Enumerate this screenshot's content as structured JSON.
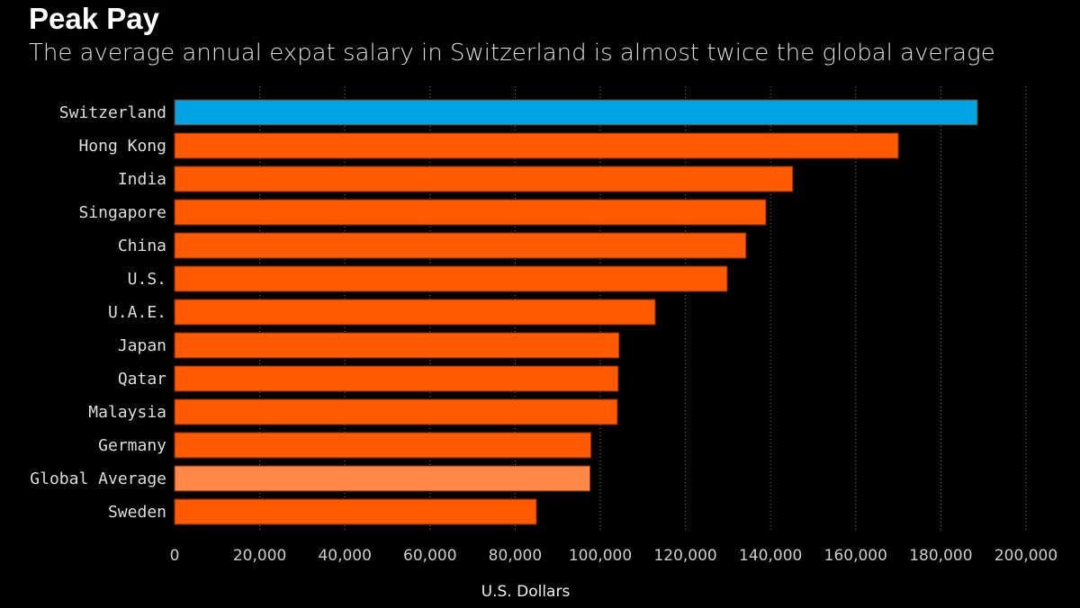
{
  "chart_data": {
    "type": "bar",
    "orientation": "horizontal",
    "title": "Peak Pay",
    "subtitle": "The average annual expat salary in Switzerland is almost twice the global average",
    "xlabel": "U.S. Dollars",
    "ylabel": "",
    "xlim": [
      0,
      200000
    ],
    "xticks": [
      "0",
      "20,000",
      "40,000",
      "60,000",
      "80,000",
      "100,000",
      "120,000",
      "140,000",
      "160,000",
      "180,000",
      "200,000"
    ],
    "grid": true,
    "categories": [
      "Switzerland",
      "Hong Kong",
      "India",
      "Singapore",
      "China",
      "U.S.",
      "U.A.E.",
      "Japan",
      "Qatar",
      "Malaysia",
      "Germany",
      "Global Average",
      "Sweden"
    ],
    "values": [
      188600,
      170000,
      145200,
      138900,
      134200,
      129800,
      112900,
      104400,
      104200,
      104000,
      97800,
      97600,
      85000
    ],
    "colors": {
      "default": "#ff5a00",
      "highlight": "#00a4e4",
      "average": "#ff8747"
    },
    "highlight_categories": {
      "Switzerland": "highlight",
      "Global Average": "average"
    }
  }
}
